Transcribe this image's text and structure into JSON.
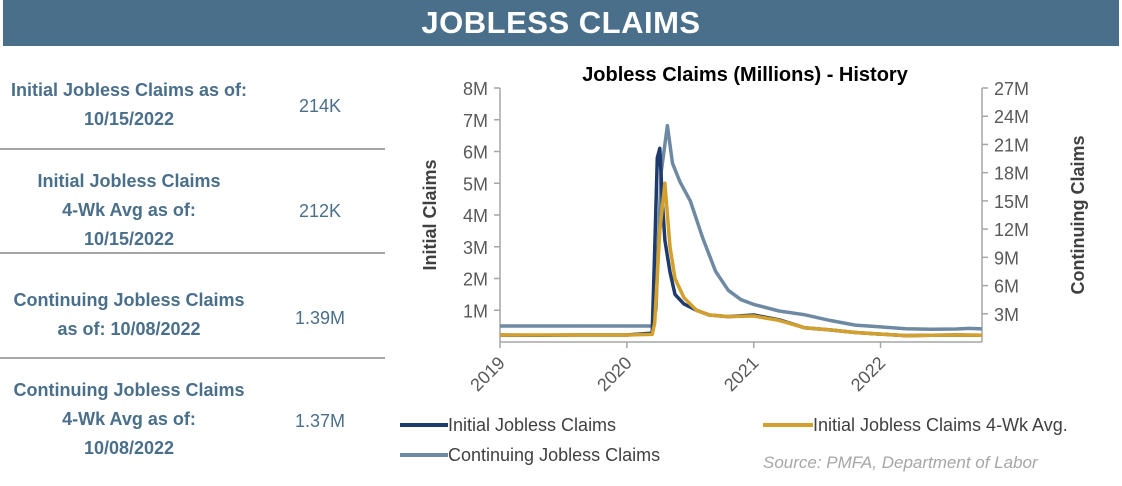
{
  "header": {
    "title": "JOBLESS CLAIMS"
  },
  "stats": [
    {
      "label_lines": [
        "Initial Jobless Claims as of:",
        "10/15/2022"
      ],
      "value": "214K"
    },
    {
      "label_lines": [
        "Initial Jobless Claims",
        "4-Wk Avg as of:",
        "10/15/2022"
      ],
      "value": "212K"
    },
    {
      "label_lines": [
        "Continuing Jobless Claims",
        "as of: 10/08/2022"
      ],
      "value": "1.39M"
    },
    {
      "label_lines": [
        "Continuing Jobless Claims",
        "4-Wk Avg as of:",
        "10/08/2022"
      ],
      "value": "1.37M"
    }
  ],
  "source": "Source: PMFA, Department of Labor",
  "colors": {
    "header": "#4a6f8a",
    "initial": "#1f3b6e",
    "avg": "#d4a02c",
    "continuing": "#6e8aa3"
  },
  "chart_data": {
    "type": "line",
    "title": "Jobless Claims (Millions) - History",
    "ylabel": "Initial Claims",
    "y2label": "Continuing  Claims",
    "ylim": [
      0,
      8
    ],
    "y2lim": [
      0,
      27
    ],
    "y_ticks": [
      "1M",
      "2M",
      "3M",
      "4M",
      "5M",
      "6M",
      "7M",
      "8M"
    ],
    "y_tick_values": [
      1,
      2,
      3,
      4,
      5,
      6,
      7,
      8
    ],
    "y2_ticks": [
      "3M",
      "6M",
      "9M",
      "12M",
      "15M",
      "18M",
      "21M",
      "24M",
      "27M"
    ],
    "y2_tick_values": [
      3,
      6,
      9,
      12,
      15,
      18,
      21,
      24,
      27
    ],
    "x_ticks": [
      "2019",
      "2020",
      "2021",
      "2022"
    ],
    "x_tick_values": [
      2019.0,
      2020.0,
      2021.0,
      2022.0
    ],
    "xlim": [
      2019.0,
      2022.8
    ],
    "legend_position": "bottom",
    "series": [
      {
        "name": "Initial Jobless Claims",
        "axis": "left",
        "x": [
          2019.0,
          2019.3,
          2019.6,
          2020.0,
          2020.2,
          2020.22,
          2020.24,
          2020.26,
          2020.28,
          2020.3,
          2020.34,
          2020.38,
          2020.45,
          2020.55,
          2020.65,
          2020.8,
          2021.0,
          2021.2,
          2021.4,
          2021.6,
          2021.8,
          2022.0,
          2022.2,
          2022.4,
          2022.6,
          2022.8
        ],
        "values": [
          0.22,
          0.21,
          0.22,
          0.22,
          0.28,
          2.9,
          5.8,
          6.1,
          4.4,
          3.2,
          2.2,
          1.5,
          1.2,
          1.0,
          0.85,
          0.8,
          0.85,
          0.7,
          0.45,
          0.38,
          0.3,
          0.25,
          0.2,
          0.21,
          0.22,
          0.21
        ]
      },
      {
        "name": "Initial Jobless Claims 4-Wk Avg.",
        "axis": "left",
        "x": [
          2019.0,
          2019.3,
          2019.6,
          2020.0,
          2020.2,
          2020.22,
          2020.26,
          2020.3,
          2020.34,
          2020.38,
          2020.45,
          2020.55,
          2020.65,
          2020.8,
          2021.0,
          2021.2,
          2021.4,
          2021.6,
          2021.8,
          2022.0,
          2022.2,
          2022.4,
          2022.6,
          2022.8
        ],
        "values": [
          0.22,
          0.22,
          0.22,
          0.22,
          0.24,
          0.6,
          3.5,
          5.0,
          3.0,
          2.0,
          1.4,
          1.0,
          0.85,
          0.8,
          0.82,
          0.68,
          0.45,
          0.38,
          0.3,
          0.25,
          0.2,
          0.21,
          0.22,
          0.21
        ]
      },
      {
        "name": "Continuing Jobless Claims",
        "axis": "right",
        "x": [
          2019.0,
          2019.3,
          2019.6,
          2020.0,
          2020.2,
          2020.23,
          2020.27,
          2020.32,
          2020.36,
          2020.42,
          2020.5,
          2020.6,
          2020.7,
          2020.8,
          2020.9,
          2021.0,
          2021.2,
          2021.4,
          2021.6,
          2021.8,
          2022.0,
          2022.2,
          2022.4,
          2022.6,
          2022.7,
          2022.8
        ],
        "values": [
          1.7,
          1.7,
          1.7,
          1.7,
          1.7,
          3.5,
          18,
          23,
          19,
          17,
          15,
          11,
          7.5,
          5.5,
          4.5,
          4.0,
          3.3,
          2.9,
          2.3,
          1.8,
          1.6,
          1.4,
          1.35,
          1.38,
          1.45,
          1.39
        ]
      }
    ]
  }
}
